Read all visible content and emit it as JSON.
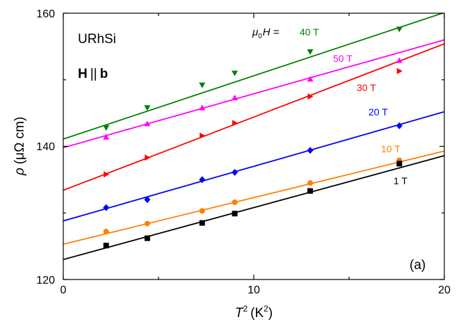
{
  "chart_data": {
    "type": "line",
    "xlabel": {
      "main": "T",
      "sup": "2",
      "unit": "(K",
      "unit_sup": "2",
      "close": ")"
    },
    "ylabel": {
      "sym": "ρ",
      "unit": "(μΩ cm)"
    },
    "xlim": [
      0,
      20
    ],
    "ylim": [
      120,
      160
    ],
    "x_ticks": [
      "0",
      "10",
      "20"
    ],
    "y_ticks": [
      "120",
      "140",
      "160"
    ],
    "x_tick_values": [
      0,
      10,
      20
    ],
    "y_tick_values": [
      120,
      140,
      160
    ],
    "grid": false,
    "annotations": {
      "compound": "URhSi",
      "field_bold": "H",
      "field_sep": "||",
      "field_axis": "b",
      "mu0h_mu": "μ",
      "mu0h_sub": "0",
      "mu0h_H": "H =",
      "panel": "(a)"
    },
    "series": [
      {
        "name": "40 T",
        "color": "#008000",
        "marker": "triangle-down",
        "x": [
          2.25,
          4.41,
          7.29,
          9.0,
          12.96,
          17.64
        ],
        "y": [
          142.8,
          145.8,
          149.2,
          151.0,
          154.2,
          157.6
        ],
        "fit": {
          "intercept": 141.1,
          "slope": 0.95
        }
      },
      {
        "name": "50 T",
        "color": "#ff00ff",
        "marker": "triangle-up",
        "x": [
          2.25,
          4.41,
          7.29,
          9.0,
          12.96,
          17.64
        ],
        "y": [
          141.4,
          143.4,
          145.8,
          147.3,
          150.1,
          152.9
        ],
        "fit": {
          "intercept": 139.8,
          "slope": 0.81
        }
      },
      {
        "name": "30 T",
        "color": "#ff0000",
        "marker": "triangle-right",
        "x": [
          2.25,
          4.41,
          7.29,
          9.0,
          12.96,
          17.64
        ],
        "y": [
          135.8,
          138.3,
          141.6,
          143.5,
          147.5,
          151.3
        ],
        "fit": {
          "intercept": 133.4,
          "slope": 1.1
        }
      },
      {
        "name": "20 T",
        "color": "#0000ff",
        "marker": "diamond",
        "x": [
          2.25,
          4.41,
          7.29,
          9.0,
          12.96,
          17.64
        ],
        "y": [
          130.8,
          132.0,
          135.0,
          136.1,
          139.4,
          143.1
        ],
        "fit": {
          "intercept": 128.8,
          "slope": 0.82
        }
      },
      {
        "name": "10 T",
        "color": "#ff7f00",
        "marker": "circle",
        "x": [
          2.25,
          4.41,
          7.29,
          9.0,
          12.96,
          17.64
        ],
        "y": [
          127.2,
          128.4,
          130.3,
          131.6,
          134.5,
          137.9
        ],
        "fit": {
          "intercept": 125.3,
          "slope": 0.7
        }
      },
      {
        "name": "1 T",
        "color": "#000000",
        "marker": "square",
        "x": [
          2.25,
          4.41,
          7.29,
          9.0,
          12.96,
          17.64
        ],
        "y": [
          125.1,
          126.2,
          128.5,
          129.9,
          133.3,
          137.4
        ],
        "fit": {
          "intercept": 123.0,
          "slope": 0.78
        }
      }
    ]
  }
}
